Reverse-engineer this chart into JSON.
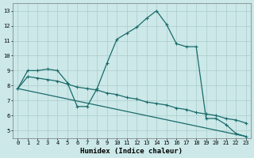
{
  "xlabel": "Humidex (Indice chaleur)",
  "background_color": "#cce8e8",
  "grid_color": "#aacccc",
  "line_color": "#1a6b6b",
  "series1_x": [
    0,
    1,
    2,
    3,
    4,
    5,
    6,
    7,
    8,
    9,
    10,
    11,
    12,
    13,
    14,
    15,
    16,
    17,
    18,
    19,
    20,
    21,
    22,
    23
  ],
  "series1_y": [
    7.8,
    9.0,
    9.0,
    9.1,
    9.0,
    8.2,
    6.6,
    6.6,
    7.8,
    9.5,
    11.1,
    11.5,
    11.9,
    12.5,
    13.0,
    12.1,
    10.8,
    10.6,
    10.6,
    5.8,
    5.8,
    5.4,
    4.8,
    4.6
  ],
  "series2_x": [
    0,
    1,
    2,
    3,
    4,
    5,
    6,
    7,
    8,
    9,
    10,
    11,
    12,
    13,
    14,
    15,
    16,
    17,
    18,
    19,
    20,
    21,
    22,
    23
  ],
  "series2_y": [
    7.8,
    8.6,
    8.5,
    8.4,
    8.3,
    8.1,
    7.9,
    7.8,
    7.7,
    7.5,
    7.4,
    7.2,
    7.1,
    6.9,
    6.8,
    6.7,
    6.5,
    6.4,
    6.2,
    6.1,
    6.0,
    5.8,
    5.7,
    5.5
  ],
  "series3_x": [
    0,
    23
  ],
  "series3_y": [
    7.8,
    4.6
  ],
  "xlim": [
    -0.5,
    23.5
  ],
  "ylim": [
    4.5,
    13.5
  ],
  "yticks": [
    5,
    6,
    7,
    8,
    9,
    10,
    11,
    12,
    13
  ],
  "xticks": [
    0,
    1,
    2,
    3,
    4,
    5,
    6,
    7,
    8,
    9,
    10,
    11,
    12,
    13,
    14,
    15,
    16,
    17,
    18,
    19,
    20,
    21,
    22,
    23
  ],
  "markersize": 3,
  "linewidth": 0.9,
  "axis_fontsize": 6.5,
  "tick_fontsize": 5.0
}
